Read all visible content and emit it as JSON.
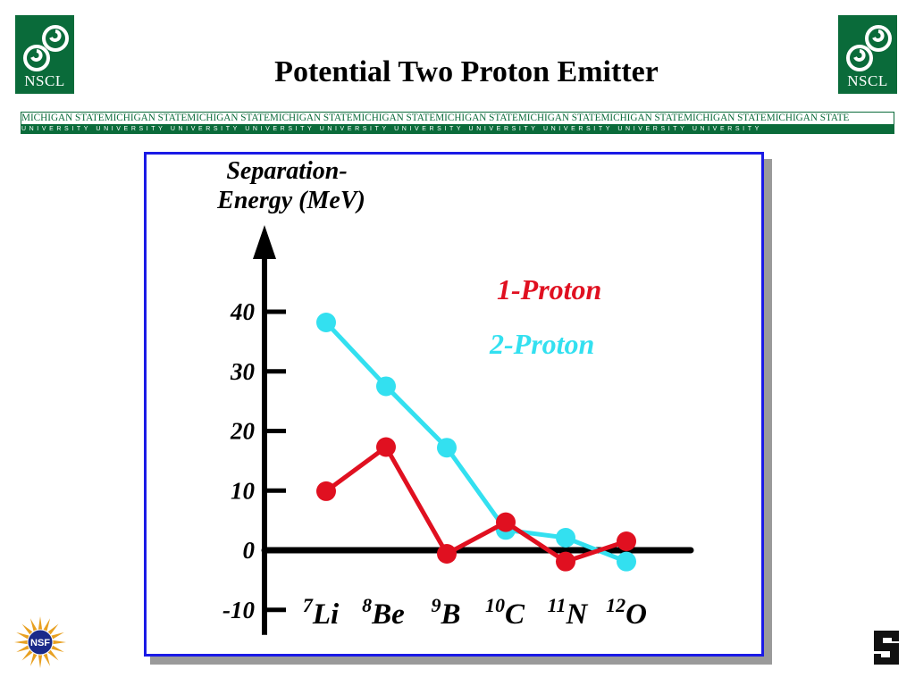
{
  "header": {
    "title": "Potential Two Proton Emitter",
    "logo_text": "NSCL",
    "banner_top": "MICHIGAN STATE",
    "banner_bottom": "UNIVERSITY",
    "banner_repeat": 10
  },
  "colors": {
    "brand_green": "#0a6b3a",
    "frame_blue": "#1a1ae6",
    "series_1proton": "#e01020",
    "series_2proton": "#33e0f0"
  },
  "icons": {
    "left_logo": "nscl-spiral-logo-icon",
    "right_logo": "nscl-spiral-logo-icon",
    "bottom_left": "nsf-seal-icon",
    "bottom_right": "msu-s-logo-icon"
  },
  "nsf_text": "NSF",
  "chart_data": {
    "type": "line",
    "ylabel_line1": "Separation-",
    "ylabel_line2": "Energy (MeV)",
    "ylim": [
      -10,
      40
    ],
    "yticks": [
      40,
      30,
      20,
      10,
      0,
      -10
    ],
    "categories": [
      {
        "mass": "7",
        "symbol": "Li"
      },
      {
        "mass": "8",
        "symbol": "Be"
      },
      {
        "mass": "9",
        "symbol": "B"
      },
      {
        "mass": "10",
        "symbol": "C"
      },
      {
        "mass": "11",
        "symbol": "N"
      },
      {
        "mass": "12",
        "symbol": "O"
      }
    ],
    "legend_placement": "top-right",
    "series": [
      {
        "name": "1-Proton",
        "color": "#e01020",
        "values": [
          9.9,
          17.3,
          -0.6,
          4.7,
          -1.9,
          1.5
        ]
      },
      {
        "name": "2-Proton",
        "color": "#33e0f0",
        "values": [
          38.2,
          27.5,
          17.2,
          3.4,
          2.1,
          -1.9
        ]
      }
    ]
  }
}
